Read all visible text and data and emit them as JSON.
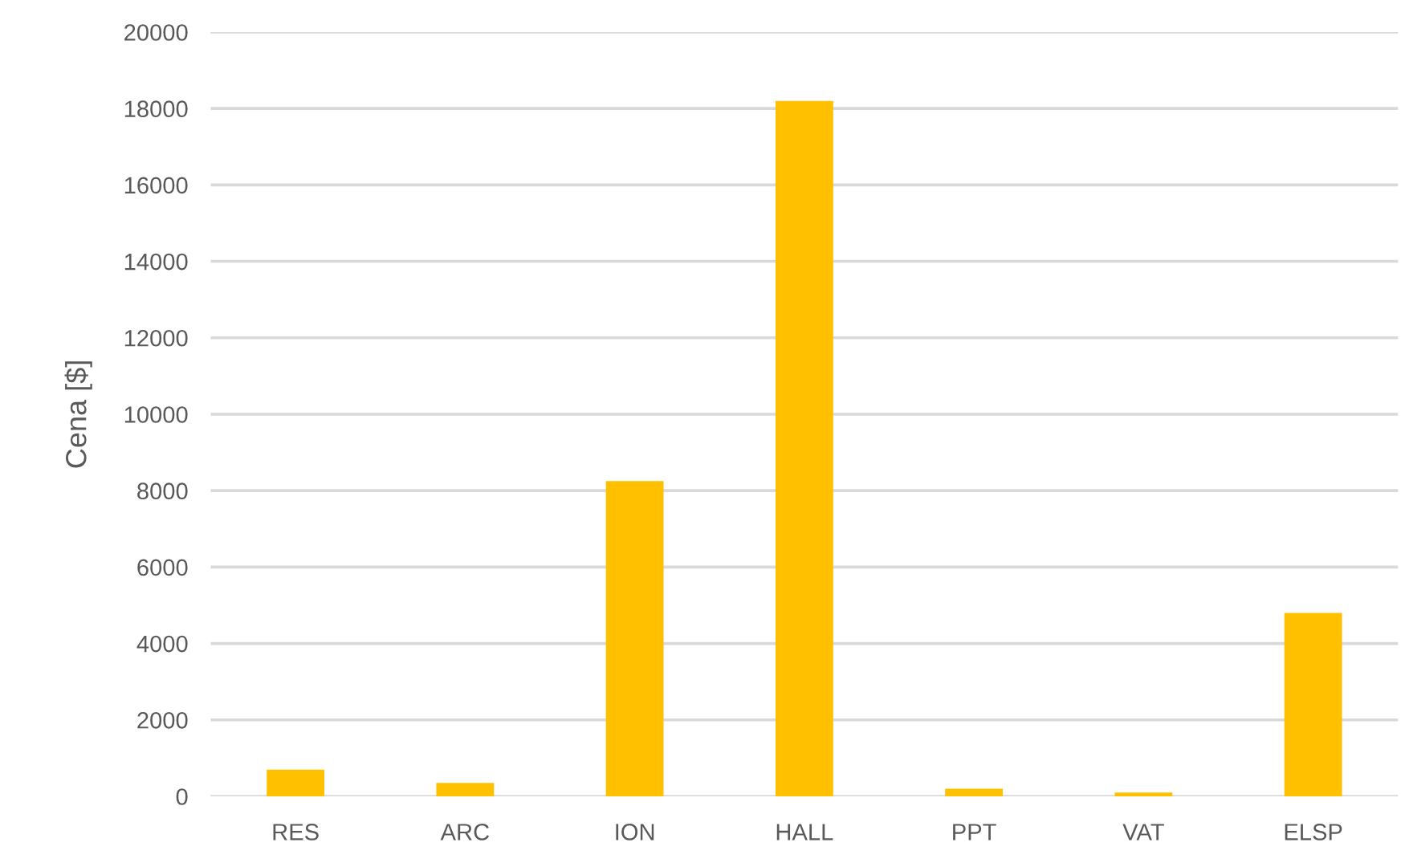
{
  "chart_data": {
    "type": "bar",
    "ylabel": "Cena [$]",
    "categories": [
      "RES",
      "ARC",
      "ION",
      "HALL",
      "PPT",
      "VAT",
      "ELSP"
    ],
    "values": [
      700,
      350,
      8250,
      18200,
      200,
      100,
      4800
    ],
    "color": "#ffc000",
    "ylim": [
      0,
      20000
    ],
    "yticks": [
      0,
      2000,
      4000,
      6000,
      8000,
      10000,
      12000,
      14000,
      16000,
      18000,
      20000
    ],
    "grid": "y",
    "legend": false
  }
}
